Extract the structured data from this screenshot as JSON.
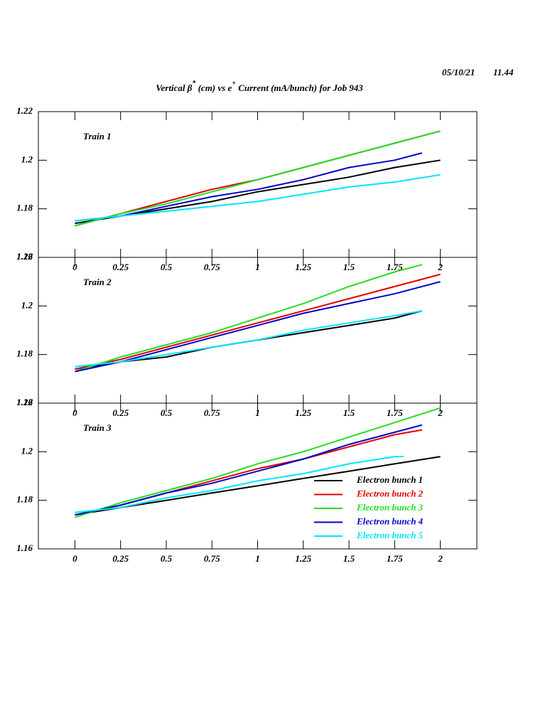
{
  "title": [
    "Vertical β",
    "*",
    " (cm) vs e",
    "+",
    " Current (mA/bunch) for Job 943"
  ],
  "date": "05/10/21",
  "time": "11.44",
  "chart_data": [
    {
      "type": "line",
      "title": "Train 1",
      "xlim": [
        -0.2,
        2.2
      ],
      "xticks": [
        0,
        0.25,
        0.5,
        0.75,
        1,
        1.25,
        1.5,
        1.75,
        2
      ],
      "ylim": [
        1.16,
        1.22
      ],
      "yticks": [
        1.16,
        1.18,
        1.2,
        1.22
      ],
      "series": [
        {
          "color": "#000000",
          "x": [
            0,
            0.25,
            0.5,
            0.75,
            1,
            1.25,
            1.5,
            1.75,
            2
          ],
          "values": [
            1.174,
            1.177,
            1.18,
            1.183,
            1.187,
            1.19,
            1.193,
            1.197,
            1.2
          ]
        },
        {
          "color": "#e00000",
          "x": [
            0,
            0.25,
            0.5,
            0.75,
            1,
            1.25,
            1.5,
            1.75,
            2
          ],
          "values": [
            1.173,
            1.178,
            1.183,
            1.188,
            1.192,
            1.197,
            1.202,
            1.207,
            1.212
          ]
        },
        {
          "color": "#22dd22",
          "x": [
            0,
            0.25,
            0.5,
            0.75,
            1,
            1.25,
            1.5,
            1.75,
            2
          ],
          "values": [
            1.173,
            1.178,
            1.182,
            1.187,
            1.192,
            1.197,
            1.202,
            1.207,
            1.212
          ]
        },
        {
          "color": "#0000cc",
          "x": [
            0,
            0.25,
            0.5,
            0.75,
            1,
            1.25,
            1.5,
            1.75,
            1.9
          ],
          "values": [
            1.175,
            1.177,
            1.181,
            1.185,
            1.188,
            1.192,
            1.197,
            1.2,
            1.203
          ]
        },
        {
          "color": "#00e5ff",
          "x": [
            0,
            0.25,
            0.5,
            0.75,
            1,
            1.25,
            1.5,
            1.75,
            2
          ],
          "values": [
            1.175,
            1.177,
            1.179,
            1.181,
            1.183,
            1.186,
            1.189,
            1.191,
            1.194
          ]
        }
      ]
    },
    {
      "type": "line",
      "title": "Train 2",
      "xlim": [
        -0.2,
        2.2
      ],
      "xticks": [
        0,
        0.25,
        0.5,
        0.75,
        1,
        1.25,
        1.5,
        1.75,
        2
      ],
      "ylim": [
        1.16,
        1.22
      ],
      "yticks": [
        1.16,
        1.18,
        1.2,
        1.22
      ],
      "series": [
        {
          "color": "#000000",
          "x": [
            0,
            0.25,
            0.5,
            0.75,
            1,
            1.25,
            1.5,
            1.75,
            1.9
          ],
          "values": [
            1.174,
            1.177,
            1.179,
            1.183,
            1.186,
            1.189,
            1.192,
            1.195,
            1.198
          ]
        },
        {
          "color": "#e00000",
          "x": [
            0,
            0.25,
            0.5,
            0.75,
            1,
            1.25,
            1.5,
            1.75,
            2
          ],
          "values": [
            1.174,
            1.178,
            1.183,
            1.188,
            1.193,
            1.198,
            1.203,
            1.208,
            1.213
          ]
        },
        {
          "color": "#22dd22",
          "x": [
            0,
            0.25,
            0.5,
            0.75,
            1,
            1.25,
            1.5,
            1.75,
            1.9
          ],
          "values": [
            1.173,
            1.179,
            1.184,
            1.189,
            1.195,
            1.201,
            1.208,
            1.214,
            1.217
          ]
        },
        {
          "color": "#0000cc",
          "x": [
            0,
            0.25,
            0.5,
            0.75,
            1,
            1.25,
            1.5,
            1.75,
            2
          ],
          "values": [
            1.173,
            1.177,
            1.182,
            1.187,
            1.192,
            1.197,
            1.201,
            1.205,
            1.21
          ]
        },
        {
          "color": "#00e5ff",
          "x": [
            0,
            0.25,
            0.5,
            0.75,
            1,
            1.25,
            1.5,
            1.75,
            1.9
          ],
          "values": [
            1.175,
            1.177,
            1.18,
            1.183,
            1.186,
            1.19,
            1.193,
            1.196,
            1.198
          ]
        }
      ]
    },
    {
      "type": "line",
      "title": "Train 3",
      "xlim": [
        -0.2,
        2.2
      ],
      "xticks": [
        0,
        0.25,
        0.5,
        0.75,
        1,
        1.25,
        1.5,
        1.75,
        2
      ],
      "ylim": [
        1.16,
        1.22
      ],
      "yticks": [
        1.16,
        1.18,
        1.2,
        1.22
      ],
      "legend": "lower right",
      "series": [
        {
          "name": "Electron bunch 1",
          "color": "#000000",
          "x": [
            0,
            0.25,
            0.5,
            0.75,
            1,
            1.25,
            1.5,
            1.75,
            2
          ],
          "values": [
            1.174,
            1.177,
            1.18,
            1.183,
            1.186,
            1.189,
            1.192,
            1.195,
            1.198
          ]
        },
        {
          "name": "Electron bunch 2",
          "color": "#e00000",
          "x": [
            0,
            0.25,
            0.5,
            0.75,
            1,
            1.25,
            1.5,
            1.75,
            1.9
          ],
          "values": [
            1.174,
            1.178,
            1.183,
            1.188,
            1.193,
            1.197,
            1.202,
            1.207,
            1.209
          ]
        },
        {
          "name": "Electron bunch 3",
          "color": "#22dd22",
          "x": [
            0,
            0.25,
            0.5,
            0.75,
            1,
            1.25,
            1.5,
            1.75,
            2
          ],
          "values": [
            1.173,
            1.179,
            1.184,
            1.189,
            1.195,
            1.2,
            1.206,
            1.212,
            1.218
          ]
        },
        {
          "name": "Electron bunch 4",
          "color": "#0000cc",
          "x": [
            0,
            0.25,
            0.5,
            0.75,
            1,
            1.25,
            1.5,
            1.75,
            1.9
          ],
          "values": [
            1.174,
            1.178,
            1.183,
            1.187,
            1.192,
            1.197,
            1.203,
            1.208,
            1.211
          ]
        },
        {
          "name": "Electron bunch 5",
          "color": "#00e5ff",
          "x": [
            0,
            0.25,
            0.5,
            0.75,
            1,
            1.25,
            1.5,
            1.75,
            1.8
          ],
          "values": [
            1.175,
            1.177,
            1.181,
            1.184,
            1.188,
            1.191,
            1.195,
            1.198,
            1.198
          ]
        }
      ]
    }
  ]
}
